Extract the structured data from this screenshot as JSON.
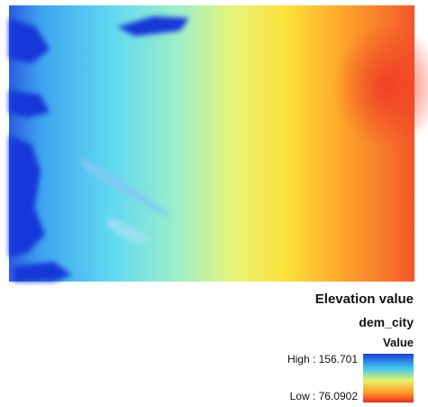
{
  "legend": {
    "title": "Elevation value",
    "layer": "dem_city",
    "field": "Value",
    "high": "High : 156.701",
    "low": "Low : 76.0902"
  }
}
